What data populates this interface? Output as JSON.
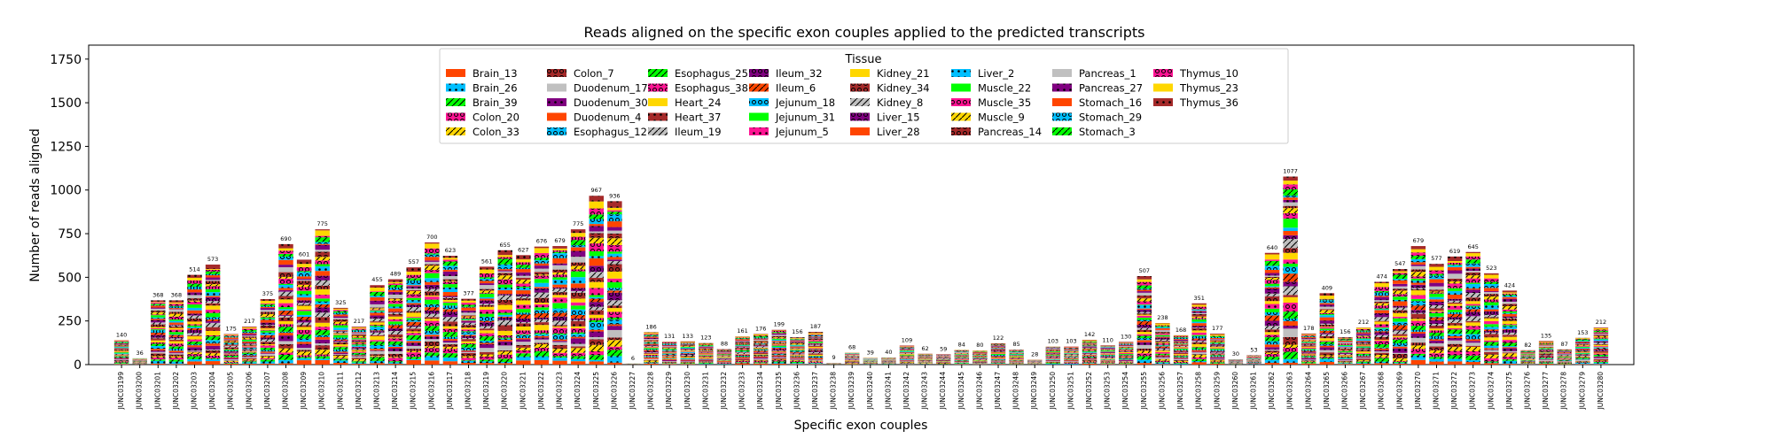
{
  "chart_data": {
    "type": "bar",
    "stacked": true,
    "title": "Reads aligned on the specific exon couples applied to the predicted transcripts",
    "xlabel": "Specific exon couples",
    "ylabel": "Number of reads aligned",
    "ylim": [
      0,
      1830
    ],
    "yticks": [
      0,
      250,
      500,
      750,
      1000,
      1250,
      1500,
      1750
    ],
    "grid": false,
    "legend": {
      "title": "Tissue",
      "placement": "top-center",
      "columns": 8
    },
    "categories": [
      "JUNC03199",
      "JUNC03200",
      "JUNC03201",
      "JUNC03202",
      "JUNC03203",
      "JUNC03204",
      "JUNC03205",
      "JUNC03206",
      "JUNC03207",
      "JUNC03208",
      "JUNC03209",
      "JUNC03210",
      "JUNC03211",
      "JUNC03212",
      "JUNC03213",
      "JUNC03214",
      "JUNC03215",
      "JUNC03216",
      "JUNC03217",
      "JUNC03218",
      "JUNC03219",
      "JUNC03220",
      "JUNC03221",
      "JUNC03222",
      "JUNC03223",
      "JUNC03224",
      "JUNC03225",
      "JUNC03226",
      "JUNC03227",
      "JUNC03228",
      "JUNC03229",
      "JUNC03230",
      "JUNC03231",
      "JUNC03232",
      "JUNC03233",
      "JUNC03234",
      "JUNC03235",
      "JUNC03236",
      "JUNC03237",
      "JUNC03238",
      "JUNC03239",
      "JUNC03240",
      "JUNC03241",
      "JUNC03242",
      "JUNC03243",
      "JUNC03244",
      "JUNC03245",
      "JUNC03246",
      "JUNC03247",
      "JUNC03248",
      "JUNC03249",
      "JUNC03250",
      "JUNC03251",
      "JUNC03252",
      "JUNC03253",
      "JUNC03254",
      "JUNC03255",
      "JUNC03256",
      "JUNC03257",
      "JUNC03258",
      "JUNC03259",
      "JUNC03260",
      "JUNC03261",
      "JUNC03262",
      "JUNC03263",
      "JUNC03264",
      "JUNC03265",
      "JUNC03266",
      "JUNC03267",
      "JUNC03268",
      "JUNC03269",
      "JUNC03270",
      "JUNC03271",
      "JUNC03272",
      "JUNC03273",
      "JUNC03274",
      "JUNC03275",
      "JUNC03276",
      "JUNC03277",
      "JUNC03278",
      "JUNC03279",
      "JUNC03280"
    ],
    "totals": [
      140,
      36,
      368,
      368,
      514,
      573,
      175,
      217,
      375,
      690,
      601,
      775,
      325,
      217,
      455,
      489,
      557,
      700,
      623,
      377,
      561,
      655,
      627,
      676,
      679,
      775,
      967,
      936,
      6,
      186,
      131,
      133,
      123,
      88,
      161,
      176,
      199,
      156,
      187,
      9,
      68,
      39,
      40,
      109,
      62,
      59,
      84,
      80,
      122,
      85,
      28,
      103,
      103,
      142,
      110,
      130,
      507,
      238,
      168,
      351,
      177,
      30,
      53,
      640,
      1077,
      178,
      409,
      156,
      212,
      474,
      547,
      679,
      577,
      619,
      645,
      523,
      424,
      82,
      135,
      87,
      153,
      212
    ],
    "series": [
      {
        "name": "Brain_13",
        "color": "#ff4500",
        "hatch": ""
      },
      {
        "name": "Brain_26",
        "color": "#00bfff",
        "hatch": "dot"
      },
      {
        "name": "Brain_39",
        "color": "#00ff00",
        "hatch": "slash"
      },
      {
        "name": "Colon_20",
        "color": "#ff1493",
        "hatch": "ring"
      },
      {
        "name": "Colon_33",
        "color": "#ffd700",
        "hatch": "slash"
      },
      {
        "name": "Colon_7",
        "color": "#a52a2a",
        "hatch": "ring"
      },
      {
        "name": "Duodenum_17",
        "color": "#c0c0c0",
        "hatch": ""
      },
      {
        "name": "Duodenum_30",
        "color": "#800080",
        "hatch": "dot"
      },
      {
        "name": "Duodenum_4",
        "color": "#ff4500",
        "hatch": ""
      },
      {
        "name": "Esophagus_12",
        "color": "#00bfff",
        "hatch": "ring"
      },
      {
        "name": "Esophagus_25",
        "color": "#00ff00",
        "hatch": "slash"
      },
      {
        "name": "Esophagus_38",
        "color": "#ff1493",
        "hatch": "ring"
      },
      {
        "name": "Heart_24",
        "color": "#ffd700",
        "hatch": ""
      },
      {
        "name": "Heart_37",
        "color": "#a52a2a",
        "hatch": "dot"
      },
      {
        "name": "Ileum_19",
        "color": "#c0c0c0",
        "hatch": "slash"
      },
      {
        "name": "Ileum_32",
        "color": "#800080",
        "hatch": "ring"
      },
      {
        "name": "Ileum_6",
        "color": "#ff4500",
        "hatch": "slash"
      },
      {
        "name": "Jejunum_18",
        "color": "#00bfff",
        "hatch": "ring"
      },
      {
        "name": "Jejunum_31",
        "color": "#00ff00",
        "hatch": ""
      },
      {
        "name": "Jejunum_5",
        "color": "#ff1493",
        "hatch": "dot"
      },
      {
        "name": "Kidney_21",
        "color": "#ffd700",
        "hatch": ""
      },
      {
        "name": "Kidney_34",
        "color": "#a52a2a",
        "hatch": "ring"
      },
      {
        "name": "Kidney_8",
        "color": "#c0c0c0",
        "hatch": "slash"
      },
      {
        "name": "Liver_15",
        "color": "#800080",
        "hatch": "ring"
      },
      {
        "name": "Liver_28",
        "color": "#ff4500",
        "hatch": ""
      },
      {
        "name": "Liver_2",
        "color": "#00bfff",
        "hatch": "dot"
      },
      {
        "name": "Muscle_22",
        "color": "#00ff00",
        "hatch": ""
      },
      {
        "name": "Muscle_35",
        "color": "#ff1493",
        "hatch": "ring"
      },
      {
        "name": "Muscle_9",
        "color": "#ffd700",
        "hatch": "slash"
      },
      {
        "name": "Pancreas_14",
        "color": "#a52a2a",
        "hatch": "ring"
      },
      {
        "name": "Pancreas_1",
        "color": "#c0c0c0",
        "hatch": ""
      },
      {
        "name": "Pancreas_27",
        "color": "#800080",
        "hatch": "dot"
      },
      {
        "name": "Stomach_16",
        "color": "#ff4500",
        "hatch": ""
      },
      {
        "name": "Stomach_29",
        "color": "#00bfff",
        "hatch": "ring"
      },
      {
        "name": "Stomach_3",
        "color": "#00ff00",
        "hatch": "slash"
      },
      {
        "name": "Thymus_10",
        "color": "#ff1493",
        "hatch": "ring"
      },
      {
        "name": "Thymus_23",
        "color": "#ffd700",
        "hatch": ""
      },
      {
        "name": "Thymus_36",
        "color": "#a52a2a",
        "hatch": "dot"
      }
    ]
  }
}
